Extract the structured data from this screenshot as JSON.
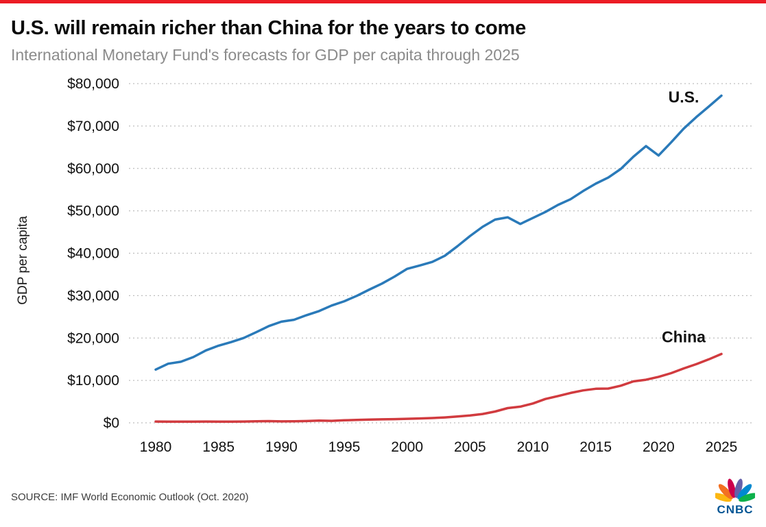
{
  "page": {
    "accent_color": "#ec1c24",
    "title": "U.S. will remain richer than China for the years to come",
    "subtitle": "International Monetary Fund's forecasts for GDP per capita through 2025",
    "source": "SOURCE: IMF World Economic Outlook (Oct. 2020)"
  },
  "logo": {
    "text": "CNBC",
    "text_color": "#005594",
    "petal_colors": [
      "#fcb711",
      "#f37021",
      "#cc004c",
      "#6460aa",
      "#0089d0",
      "#0db14b"
    ]
  },
  "chart_data": {
    "type": "line",
    "title": "U.S. will remain richer than China for the years to come",
    "subtitle": "International Monetary Fund's forecasts for GDP per capita through 2025",
    "xlabel": "",
    "ylabel": "GDP per capita",
    "ylim": [
      0,
      80000
    ],
    "yticks": [
      0,
      10000,
      20000,
      30000,
      40000,
      50000,
      60000,
      70000,
      80000
    ],
    "ytick_labels": [
      "$0",
      "$10,000",
      "$20,000",
      "$30,000",
      "$40,000",
      "$50,000",
      "$60,000",
      "$70,000",
      "$80,000"
    ],
    "xticks": [
      1980,
      1985,
      1990,
      1995,
      2000,
      2005,
      2010,
      2015,
      2020,
      2025
    ],
    "grid": "horizontal-dotted",
    "legend": "series-end-labels",
    "x": [
      1980,
      1981,
      1982,
      1983,
      1984,
      1985,
      1986,
      1987,
      1988,
      1989,
      1990,
      1991,
      1992,
      1993,
      1994,
      1995,
      1996,
      1997,
      1998,
      1999,
      2000,
      2001,
      2002,
      2003,
      2004,
      2005,
      2006,
      2007,
      2008,
      2009,
      2010,
      2011,
      2012,
      2013,
      2014,
      2015,
      2016,
      2017,
      2018,
      2019,
      2020,
      2021,
      2022,
      2023,
      2024,
      2025
    ],
    "series": [
      {
        "name": "U.S.",
        "color": "#2a7ab9",
        "values": [
          12553,
          13949,
          14405,
          15514,
          17086,
          18199,
          19034,
          20001,
          21376,
          22814,
          23848,
          24302,
          25392,
          26364,
          27674,
          28671,
          29947,
          31440,
          32833,
          34496,
          36318,
          37101,
          37945,
          39405,
          41641,
          44034,
          46216,
          47943,
          48470,
          46909,
          48310,
          49736,
          51398,
          52737,
          54657,
          56411,
          57841,
          59885,
          62769,
          65254,
          63051,
          66144,
          69375,
          72102,
          74598,
          77157
        ]
      },
      {
        "name": "China",
        "color": "#d13b3f",
        "values": [
          307,
          288,
          279,
          296,
          301,
          292,
          279,
          299,
          366,
          406,
          346,
          356,
          419,
          521,
          468,
          603,
          699,
          774,
          821,
          865,
          951,
          1042,
          1135,
          1274,
          1486,
          1732,
          2082,
          2673,
          3468,
          3819,
          4550,
          5618,
          6316,
          7050,
          7651,
          8034,
          8079,
          8760,
          9771,
          10170,
          10839,
          11713,
          12839,
          13837,
          14982,
          16241
        ]
      }
    ]
  }
}
